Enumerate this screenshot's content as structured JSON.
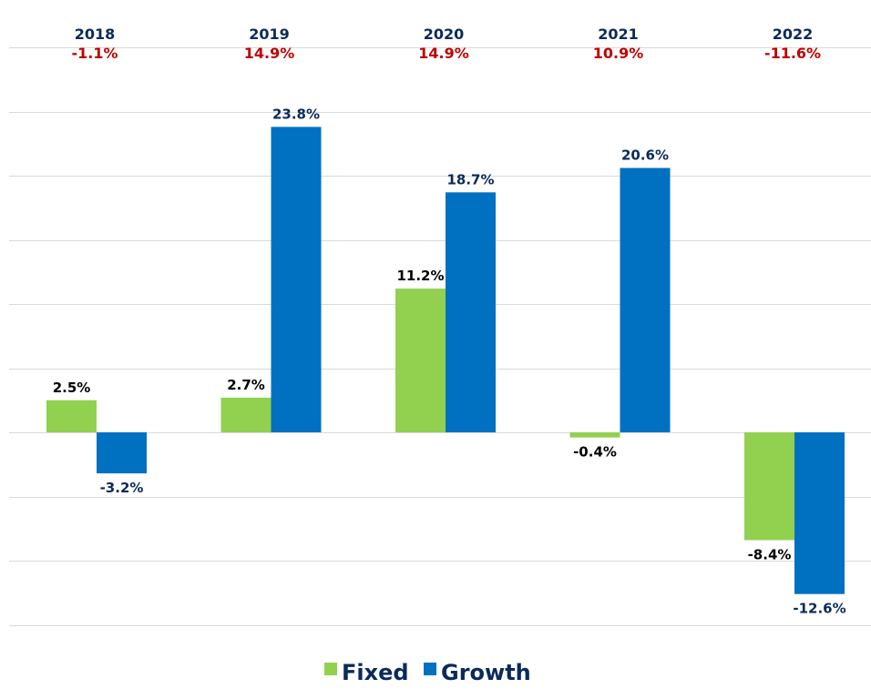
{
  "chart_data": {
    "type": "bar",
    "categories": [
      "2018",
      "2019",
      "2020",
      "2021",
      "2022"
    ],
    "annual_totals": [
      "-1.1%",
      "14.9%",
      "14.9%",
      "10.9%",
      "-11.6%"
    ],
    "series": [
      {
        "name": "Fixed",
        "values": [
          2.5,
          2.7,
          11.2,
          -0.4,
          -8.4
        ],
        "labels": [
          "2.5%",
          "2.7%",
          "11.2%",
          "-0.4%",
          "-8.4%"
        ],
        "color": "#92d050",
        "label_color": "#000000"
      },
      {
        "name": "Growth",
        "values": [
          -3.2,
          23.8,
          18.7,
          20.6,
          -12.6
        ],
        "labels": [
          "-3.2%",
          "23.8%",
          "18.7%",
          "20.6%",
          "-12.6%"
        ],
        "color": "#0070c0",
        "label_color": "#0b2a5b"
      }
    ],
    "ylim": [
      -15,
      30
    ],
    "grid": true,
    "legend_position": "bottom-center",
    "title": "",
    "xlabel": "",
    "ylabel": ""
  },
  "colors": {
    "year_text": "#0b2a5b",
    "total_text": "#c00000",
    "gridline": "#d9d9d9"
  }
}
